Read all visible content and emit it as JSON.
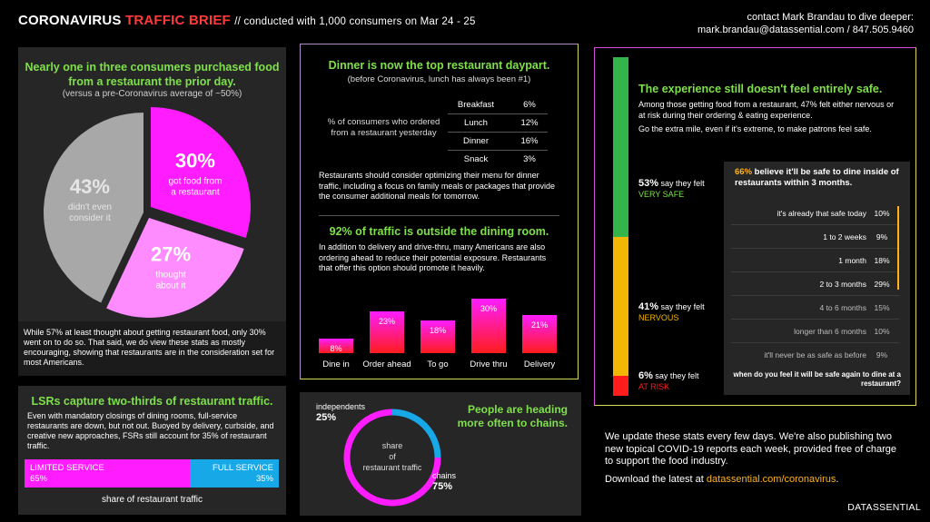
{
  "header": {
    "title_part1": "CORONAVIRUS",
    "title_part2": "TRAFFIC BRIEF",
    "subtitle": "// conducted with 1,000 consumers on Mar 24 - 25",
    "contact_line1": "contact Mark Brandau to dive deeper:",
    "contact_line2": "mark.brandau@datassential.com / 847.505.9460"
  },
  "panel_pie": {
    "title": "Nearly one in three consumers purchased food from a restaurant the prior day.",
    "subtitle": "(versus a pre-Coronavirus average of ~50%)",
    "note": "While 57% at least thought about getting restaurant food, only 30% went on to do so. That said, we do view these stats as mostly encouraging, showing that restaurants are in the consideration set for most Americans.",
    "slices": [
      {
        "pct_label": "30%",
        "label1": "got food from",
        "label2": "a restaurant"
      },
      {
        "pct_label": "27%",
        "label1": "thought",
        "label2": "about it"
      },
      {
        "pct_label": "43%",
        "label1": "didn't even",
        "label2": "consider it"
      }
    ]
  },
  "panel_lsr": {
    "title": "LSRs capture two-thirds of restaurant traffic.",
    "text": "Even with mandatory closings of dining rooms, full-service restaurants are down, but not out. Buoyed by delivery, curbside, and creative new approaches, FSRs still account for 35% of restaurant traffic.",
    "lsr_label": "LIMITED SERVICE",
    "lsr_value": "65%",
    "fsr_label": "FULL SERVICE",
    "fsr_value": "35%",
    "caption": "share of restaurant traffic"
  },
  "panel_daypart": {
    "title": "Dinner is now the top restaurant daypart.",
    "subtitle": "(before Coronavirus, lunch has always been #1)",
    "table_label": "% of consumers who ordered from a restaurant yesterday",
    "rows": [
      {
        "label": "Breakfast",
        "value": "6%"
      },
      {
        "label": "Lunch",
        "value": "12%"
      },
      {
        "label": "Dinner",
        "value": "16%"
      },
      {
        "label": "Snack",
        "value": "3%"
      }
    ],
    "text": "Restaurants should consider optimizing their menu for dinner traffic, including a focus on family meals or packages that provide the consumer additional meals for tomorrow.",
    "title2": "92% of traffic is outside the dining room.",
    "text2": "In addition to delivery and drive-thru, many Americans are also ordering ahead to reduce their potential exposure. Restaurants that offer this option should promote it heavily."
  },
  "panel_safety": {
    "title": "The experience still doesn't feel entirely safe.",
    "text": "Among those getting food from a restaurant, 47% felt either nervous or at risk during their ordering & eating experience.",
    "text2": "Go the extra mile, even if it's extreme, to make patrons feel safe.",
    "segments": [
      {
        "pct": "53%",
        "text": "say they felt",
        "label": "VERY SAFE",
        "value": 53,
        "color": "#34b54a"
      },
      {
        "pct": "41%",
        "text": "say they felt",
        "label": "NERVOUS",
        "value": 41,
        "color": "#f2b705"
      },
      {
        "pct": "6%",
        "text": "say they felt",
        "label": "AT RISK",
        "value": 6,
        "color": "#ff1c1c"
      }
    ],
    "box_pct": "66%",
    "box_title": "believe it'll be safe to dine inside of restaurants within 3 months.",
    "when_rows": [
      {
        "label": "it's already that safe today",
        "value": "10%"
      },
      {
        "label": "1 to 2 weeks",
        "value": "9%"
      },
      {
        "label": "1 month",
        "value": "18%"
      },
      {
        "label": "2 to 3 months",
        "value": "29%"
      },
      {
        "label": "4 to 6 months",
        "value": "15%"
      },
      {
        "label": "longer than 6 months",
        "value": "10%"
      },
      {
        "label": "it'll never be as safe as before",
        "value": "9%"
      }
    ],
    "question": "when do you feel it will be safe again to dine at a restaurant?"
  },
  "panel_chains": {
    "title": "People are heading more often to chains.",
    "center_label": "share of restaurant traffic",
    "independents_label": "independents",
    "independents_value": "25%",
    "chains_label": "chains",
    "chains_value": "75%"
  },
  "footer": {
    "text": "We update these stats every few days. We're also publishing two new topical COVID-19 reports each week, provided free of charge to support the food industry.",
    "download_prefix": "Download the latest at",
    "download_link": "datassential.com/coronavirus",
    "download_suffix": ".",
    "brand": "DATASSENTIAL"
  },
  "colors": {
    "accent_green": "#7ee04a",
    "magenta": "#ff1cff",
    "pink": "#ff8cff",
    "gray": "#a8a8a8",
    "blue": "#17a8e8",
    "red": "#ff1c1c",
    "orange": "#ffb21c"
  },
  "chart_data": [
    {
      "type": "pie",
      "categories": [
        "got food from a restaurant",
        "thought about it",
        "didn't even consider it"
      ],
      "values": [
        30,
        27,
        43
      ],
      "title": "Nearly one in three consumers purchased food from a restaurant the prior day."
    },
    {
      "type": "bar",
      "categories": [
        "Dine in",
        "Order ahead",
        "To go",
        "Drive thru",
        "Delivery"
      ],
      "values": [
        8,
        23,
        18,
        30,
        21
      ],
      "value_labels": [
        "8%",
        "23%",
        "18%",
        "30%",
        "21%"
      ],
      "title": "92% of traffic is outside the dining room."
    },
    {
      "type": "table",
      "categories": [
        "Breakfast",
        "Lunch",
        "Dinner",
        "Snack"
      ],
      "values": [
        6,
        12,
        16,
        3
      ],
      "title": "Dinner is now the top restaurant daypart."
    },
    {
      "type": "bar",
      "categories": [
        "LIMITED SERVICE",
        "FULL SERVICE"
      ],
      "values": [
        65,
        35
      ],
      "title": "LSRs capture two-thirds of restaurant traffic."
    },
    {
      "type": "pie",
      "categories": [
        "independents",
        "chains"
      ],
      "values": [
        25,
        75
      ],
      "title": "People are heading more often to chains."
    },
    {
      "type": "bar",
      "categories": [
        "VERY SAFE",
        "NERVOUS",
        "AT RISK"
      ],
      "values": [
        53,
        41,
        6
      ],
      "title": "The experience still doesn't feel entirely safe."
    },
    {
      "type": "table",
      "categories": [
        "it's already that safe today",
        "1 to 2 weeks",
        "1 month",
        "2 to 3 months",
        "4 to 6 months",
        "longer than 6 months",
        "it'll never be as safe as before"
      ],
      "values": [
        10,
        9,
        18,
        29,
        15,
        10,
        9
      ],
      "title": "when do you feel it will be safe again to dine at a restaurant?"
    }
  ]
}
